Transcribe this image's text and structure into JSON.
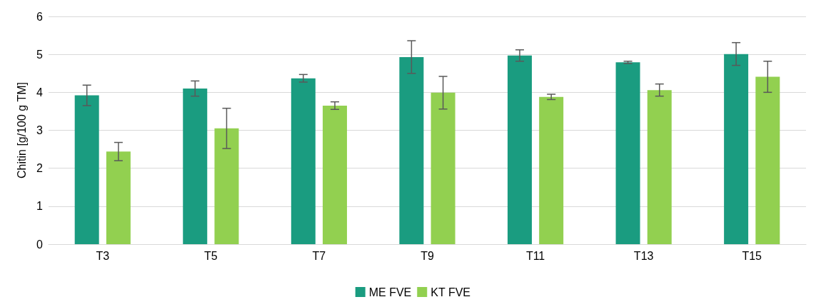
{
  "chart_data": {
    "type": "bar",
    "ylabel": "Chitin [g/100 g TM]",
    "categories": [
      "T3",
      "T5",
      "T7",
      "T9",
      "T11",
      "T13",
      "T15"
    ],
    "series": [
      {
        "name": "ME FVE",
        "color": "#1a9c80",
        "values": [
          3.92,
          4.1,
          4.37,
          4.93,
          4.97,
          4.79,
          5.01
        ],
        "errors": [
          0.27,
          0.2,
          0.1,
          0.43,
          0.15,
          0.03,
          0.3
        ]
      },
      {
        "name": "KT FVE",
        "color": "#92d050",
        "values": [
          2.44,
          3.05,
          3.65,
          3.99,
          3.88,
          4.06,
          4.41
        ],
        "errors": [
          0.24,
          0.53,
          0.1,
          0.43,
          0.07,
          0.16,
          0.41
        ]
      }
    ],
    "ylim": [
      0,
      6
    ],
    "yticks": [
      0,
      1,
      2,
      3,
      4,
      5,
      6
    ],
    "grid": "y",
    "legend": "bottom"
  }
}
